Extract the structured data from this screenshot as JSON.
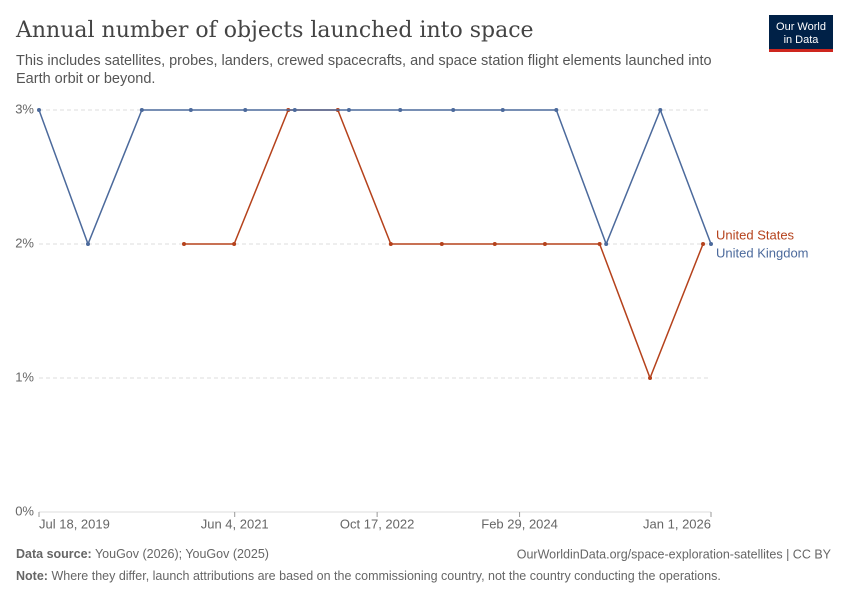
{
  "chart_data": {
    "type": "line",
    "title": "Annual number of objects launched into space",
    "subtitle": [
      "This includes satellites, probes, landers, crewed spacecrafts, and space station flight elements launched into",
      "Earth orbit or beyond."
    ],
    "logo": [
      "Our World",
      "in Data"
    ],
    "source_label": "Data source:",
    "source": "YouGov (2026); YouGov (2025)",
    "url": "OurWorldinData.org/space-exploration-satellites | CC BY",
    "note_label": "Note:",
    "note": "Where they differ, launch attributions are based on the commissioning country, not the country conducting the operations.",
    "xlim": [
      "2019-07-18",
      "2026-01-01"
    ],
    "xticks": [
      {
        "value": "2019-07-18",
        "label": "Jul 18, 2019"
      },
      {
        "value": "2021-06-04",
        "label": "Jun 4, 2021"
      },
      {
        "value": "2022-10-17",
        "label": "Oct 17, 2022"
      },
      {
        "value": "2024-02-29",
        "label": "Feb 29, 2024"
      },
      {
        "value": "2026-01-01",
        "label": "Jan 1, 2026"
      }
    ],
    "ylim": [
      0,
      3
    ],
    "yticks": [
      {
        "value": 0,
        "label": "0%"
      },
      {
        "value": 1,
        "label": "1%"
      },
      {
        "value": 2,
        "label": "2%"
      },
      {
        "value": 3,
        "label": "3%"
      }
    ],
    "grid": true,
    "series": [
      {
        "name": "United States",
        "color": "#b5421c",
        "x": [
          "2020-12-08",
          "2021-06-02",
          "2021-12-09",
          "2022-06-01",
          "2022-12-04",
          "2023-06-01",
          "2023-12-04",
          "2024-05-28",
          "2024-12-06",
          "2025-06-01",
          "2025-12-04"
        ],
        "values": [
          2,
          2,
          3,
          3,
          2,
          2,
          2,
          2,
          2,
          1,
          2
        ]
      },
      {
        "name": "United Kingdom",
        "color": "#4c6a9c",
        "x": [
          "2019-07-18",
          "2020-01-06",
          "2020-07-13",
          "2021-01-01",
          "2021-07-11",
          "2022-01-01",
          "2022-07-10",
          "2023-01-06",
          "2023-07-11",
          "2024-01-01",
          "2024-07-07",
          "2024-12-29",
          "2025-07-07",
          "2026-01-01"
        ],
        "values": [
          3,
          2,
          3,
          3,
          3,
          3,
          3,
          3,
          3,
          3,
          3,
          2,
          3,
          2
        ]
      }
    ]
  }
}
